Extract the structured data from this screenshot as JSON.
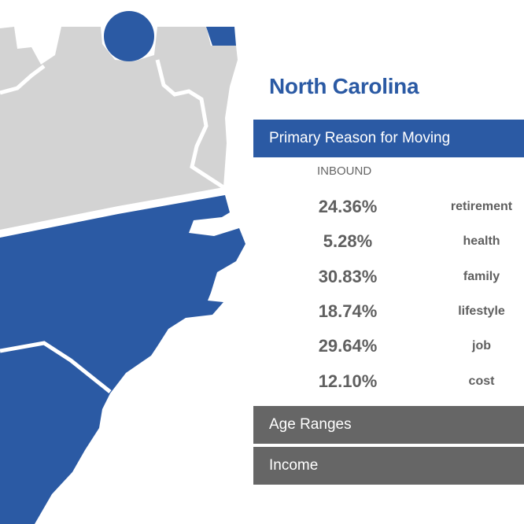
{
  "panel": {
    "title": "North Carolina",
    "sections": [
      {
        "label": "Primary Reason for Moving",
        "expanded": true
      },
      {
        "label": "Age Ranges",
        "expanded": false
      },
      {
        "label": "Income",
        "expanded": false
      }
    ],
    "direction_label": "INBOUND",
    "reasons": [
      {
        "percent": "24.36%",
        "reason": "retirement"
      },
      {
        "percent": "5.28%",
        "reason": "health"
      },
      {
        "percent": "30.83%",
        "reason": "family"
      },
      {
        "percent": "18.74%",
        "reason": "lifestyle"
      },
      {
        "percent": "29.64%",
        "reason": "job"
      },
      {
        "percent": "12.10%",
        "reason": "cost"
      }
    ]
  },
  "colors": {
    "highlight_state": "#2b5aa4",
    "neighbor_state": "#d3d3d3",
    "collapsed_header": "#666666",
    "value_text": "#5f5f5f"
  }
}
